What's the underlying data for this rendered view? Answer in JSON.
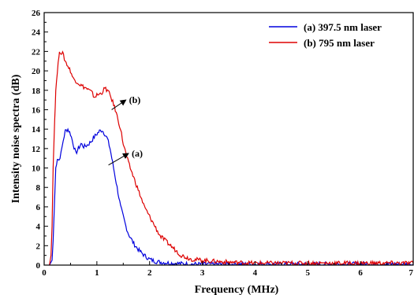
{
  "chart_data": {
    "type": "line",
    "xlabel": "Frequency (MHz)",
    "ylabel": "Intensity  noise spectra (dB)",
    "xlim": [
      0,
      7
    ],
    "ylim": [
      0,
      26
    ],
    "xticks": [
      "0",
      "1",
      "2",
      "3",
      "4",
      "5",
      "6",
      "7"
    ],
    "yticks": [
      "0",
      "2",
      "4",
      "6",
      "8",
      "10",
      "12",
      "14",
      "16",
      "18",
      "20",
      "22",
      "24",
      "26"
    ],
    "grid": false,
    "legend_position": "top-right",
    "series": [
      {
        "name": "(a) 397.5 nm laser",
        "color": "#0000dd",
        "x": [
          0.1,
          0.15,
          0.17,
          0.2,
          0.22,
          0.25,
          0.28,
          0.32,
          0.36,
          0.4,
          0.45,
          0.5,
          0.55,
          0.6,
          0.65,
          0.7,
          0.75,
          0.8,
          0.85,
          0.9,
          0.95,
          1.0,
          1.05,
          1.1,
          1.15,
          1.2,
          1.25,
          1.3,
          1.35,
          1.4,
          1.45,
          1.5,
          1.55,
          1.6,
          1.7,
          1.8,
          1.9,
          2.0,
          2.1,
          2.2,
          2.4,
          2.6,
          2.8,
          3.0,
          3.5,
          4.0,
          4.5,
          5.0,
          5.5,
          6.0,
          6.5,
          7.0
        ],
        "y": [
          0.0,
          0.5,
          2.5,
          7.0,
          10.0,
          11.0,
          10.8,
          11.5,
          12.8,
          13.8,
          14.0,
          13.5,
          12.5,
          11.5,
          12.0,
          12.5,
          12.2,
          12.3,
          12.5,
          12.8,
          13.2,
          13.5,
          13.8,
          13.9,
          13.5,
          13.0,
          12.0,
          10.5,
          9.0,
          7.5,
          6.0,
          5.0,
          4.0,
          3.2,
          2.2,
          1.5,
          1.0,
          0.6,
          0.4,
          0.3,
          0.2,
          0.15,
          0.1,
          0.1,
          0.1,
          0.1,
          0.1,
          0.1,
          0.1,
          0.1,
          0.1,
          0.1
        ]
      },
      {
        "name": "(b) 795 nm laser",
        "color": "#dd0000",
        "x": [
          0.1,
          0.13,
          0.15,
          0.17,
          0.2,
          0.22,
          0.25,
          0.28,
          0.3,
          0.35,
          0.4,
          0.45,
          0.5,
          0.55,
          0.6,
          0.7,
          0.8,
          0.9,
          0.95,
          1.0,
          1.05,
          1.1,
          1.15,
          1.2,
          1.25,
          1.3,
          1.35,
          1.4,
          1.45,
          1.5,
          1.6,
          1.7,
          1.8,
          1.9,
          2.0,
          2.1,
          2.2,
          2.3,
          2.4,
          2.5,
          2.6,
          2.7,
          2.8,
          3.0,
          3.2,
          3.5,
          4.0,
          4.5,
          5.0,
          5.5,
          6.0,
          6.5,
          7.0
        ],
        "y": [
          0.0,
          1.0,
          4.0,
          10.0,
          15.0,
          18.0,
          20.0,
          21.5,
          22.0,
          21.8,
          21.0,
          20.5,
          20.0,
          19.2,
          19.0,
          18.5,
          18.2,
          17.8,
          17.3,
          17.5,
          17.6,
          17.8,
          18.2,
          18.0,
          17.5,
          16.8,
          16.0,
          15.0,
          14.0,
          12.5,
          10.5,
          9.0,
          7.5,
          6.0,
          5.0,
          4.0,
          3.0,
          2.5,
          2.0,
          1.5,
          1.0,
          0.8,
          0.6,
          0.5,
          0.4,
          0.3,
          0.2,
          0.2,
          0.2,
          0.2,
          0.2,
          0.2,
          0.2
        ]
      }
    ],
    "annotations": [
      {
        "text": "(b)",
        "arrow_from": [
          1.55,
          17.0
        ],
        "arrow_to": [
          1.28,
          16.0
        ]
      },
      {
        "text": "(a)",
        "arrow_from": [
          1.6,
          11.5
        ],
        "arrow_to": [
          1.22,
          10.3
        ]
      }
    ]
  }
}
